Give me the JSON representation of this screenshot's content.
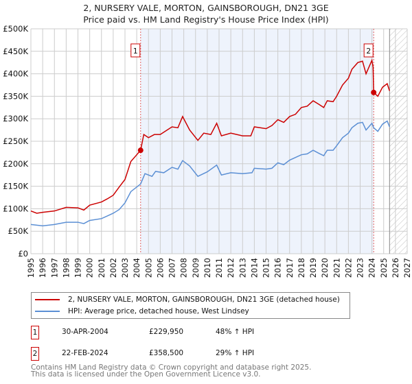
{
  "chart_data": {
    "type": "line",
    "title": "2, NURSERY VALE, MORTON, GAINSBOROUGH, DN21 3GE",
    "subtitle": "Price paid vs. HM Land Registry's House Price Index (HPI)",
    "xlim": [
      1995,
      2027
    ],
    "ylim": [
      0,
      500000
    ],
    "x_ticks": [
      "1995",
      "1996",
      "1997",
      "1998",
      "1999",
      "2000",
      "2001",
      "2002",
      "2003",
      "2004",
      "2005",
      "2006",
      "2007",
      "2008",
      "2009",
      "2010",
      "2011",
      "2012",
      "2013",
      "2014",
      "2015",
      "2016",
      "2017",
      "2018",
      "2019",
      "2020",
      "2021",
      "2022",
      "2023",
      "2024",
      "2025",
      "2026",
      "2027"
    ],
    "y_ticks": [
      {
        "v": 0,
        "label": "£0"
      },
      {
        "v": 50000,
        "label": "£50K"
      },
      {
        "v": 100000,
        "label": "£100K"
      },
      {
        "v": 150000,
        "label": "£150K"
      },
      {
        "v": 200000,
        "label": "£200K"
      },
      {
        "v": 250000,
        "label": "£250K"
      },
      {
        "v": 300000,
        "label": "£300K"
      },
      {
        "v": 350000,
        "label": "£350K"
      },
      {
        "v": 400000,
        "label": "£400K"
      },
      {
        "v": 450000,
        "label": "£450K"
      },
      {
        "v": 500000,
        "label": "£500K"
      }
    ],
    "grid": true,
    "shaded_range": [
      2004.33,
      2024.15
    ],
    "future_hatch_from": 2025.5,
    "series": [
      {
        "name": "2, NURSERY VALE, MORTON, GAINSBOROUGH, DN21 3GE (detached house)",
        "color": "#cc0000",
        "x": [
          1995,
          1995.5,
          1996,
          1997,
          1998,
          1999,
          1999.5,
          2000,
          2001,
          2001.5,
          2002,
          2002.5,
          2003,
          2003.5,
          2004,
          2004.33,
          2004.6,
          2005,
          2005.5,
          2006,
          2007,
          2007.5,
          2007.9,
          2008.5,
          2009.2,
          2009.7,
          2010.3,
          2010.8,
          2011.2,
          2012,
          2013,
          2013.7,
          2014,
          2015,
          2015.5,
          2016,
          2016.5,
          2017,
          2017.5,
          2018,
          2018.5,
          2019,
          2019.5,
          2019.9,
          2020.2,
          2020.7,
          2021,
          2021.5,
          2022,
          2022.3,
          2022.8,
          2023.2,
          2023.5,
          2024.0,
          2024.1,
          2024.15,
          2024.5,
          2024.9,
          2025.3,
          2025.5
        ],
        "y": [
          95000,
          90000,
          92000,
          95000,
          103000,
          102000,
          97000,
          108000,
          115000,
          122000,
          130000,
          148000,
          165000,
          205000,
          220000,
          229950,
          265000,
          258000,
          265000,
          265000,
          282000,
          280000,
          305000,
          275000,
          252000,
          268000,
          265000,
          290000,
          262000,
          268000,
          262000,
          262000,
          282000,
          278000,
          285000,
          298000,
          292000,
          305000,
          310000,
          325000,
          328000,
          340000,
          332000,
          325000,
          340000,
          338000,
          350000,
          375000,
          390000,
          410000,
          425000,
          428000,
          400000,
          430000,
          415000,
          358500,
          350000,
          370000,
          378000,
          362000
        ]
      },
      {
        "name": "HPI: Average price, detached house, West Lindsey",
        "color": "#5b8fd4",
        "x": [
          1995,
          1996,
          1997,
          1998,
          1999,
          1999.5,
          2000,
          2001,
          2001.5,
          2002,
          2002.5,
          2003,
          2003.5,
          2004.33,
          2004.7,
          2005.3,
          2005.6,
          2006.3,
          2007,
          2007.5,
          2007.9,
          2008.5,
          2009.2,
          2010,
          2010.8,
          2011.2,
          2012,
          2013,
          2013.8,
          2014,
          2015,
          2015.5,
          2016,
          2016.5,
          2017,
          2018,
          2018.5,
          2019,
          2019.5,
          2019.9,
          2020.2,
          2020.7,
          2021,
          2021.5,
          2022,
          2022.3,
          2022.8,
          2023.2,
          2023.5,
          2024.0,
          2024.15,
          2024.5,
          2024.9,
          2025.3,
          2025.5
        ],
        "y": [
          65000,
          62000,
          65000,
          70000,
          70000,
          67000,
          74000,
          78000,
          84000,
          90000,
          98000,
          113000,
          138000,
          155000,
          178000,
          172000,
          183000,
          180000,
          192000,
          188000,
          207000,
          195000,
          172000,
          182000,
          197000,
          175000,
          180000,
          178000,
          180000,
          190000,
          188000,
          190000,
          202000,
          198000,
          208000,
          220000,
          222000,
          230000,
          223000,
          218000,
          230000,
          230000,
          240000,
          258000,
          268000,
          280000,
          290000,
          292000,
          275000,
          290000,
          280000,
          272000,
          288000,
          295000,
          282000
        ]
      }
    ],
    "annotations": [
      {
        "label": "1",
        "x": 2004.33,
        "y": 229950
      },
      {
        "label": "2",
        "x": 2024.15,
        "y": 358500
      }
    ]
  },
  "legend": {
    "property": "2, NURSERY VALE, MORTON, GAINSBOROUGH, DN21 3GE (detached house)",
    "hpi": "HPI: Average price, detached house, West Lindsey"
  },
  "transactions": [
    {
      "num": "1",
      "date": "30-APR-2004",
      "price": "£229,950",
      "hpi": "48% ↑ HPI"
    },
    {
      "num": "2",
      "date": "22-FEB-2024",
      "price": "£358,500",
      "hpi": "29% ↑ HPI"
    }
  ],
  "footer": {
    "line1": "Contains HM Land Registry data © Crown copyright and database right 2025.",
    "line2": "This data is licensed under the Open Government Licence v3.0."
  }
}
